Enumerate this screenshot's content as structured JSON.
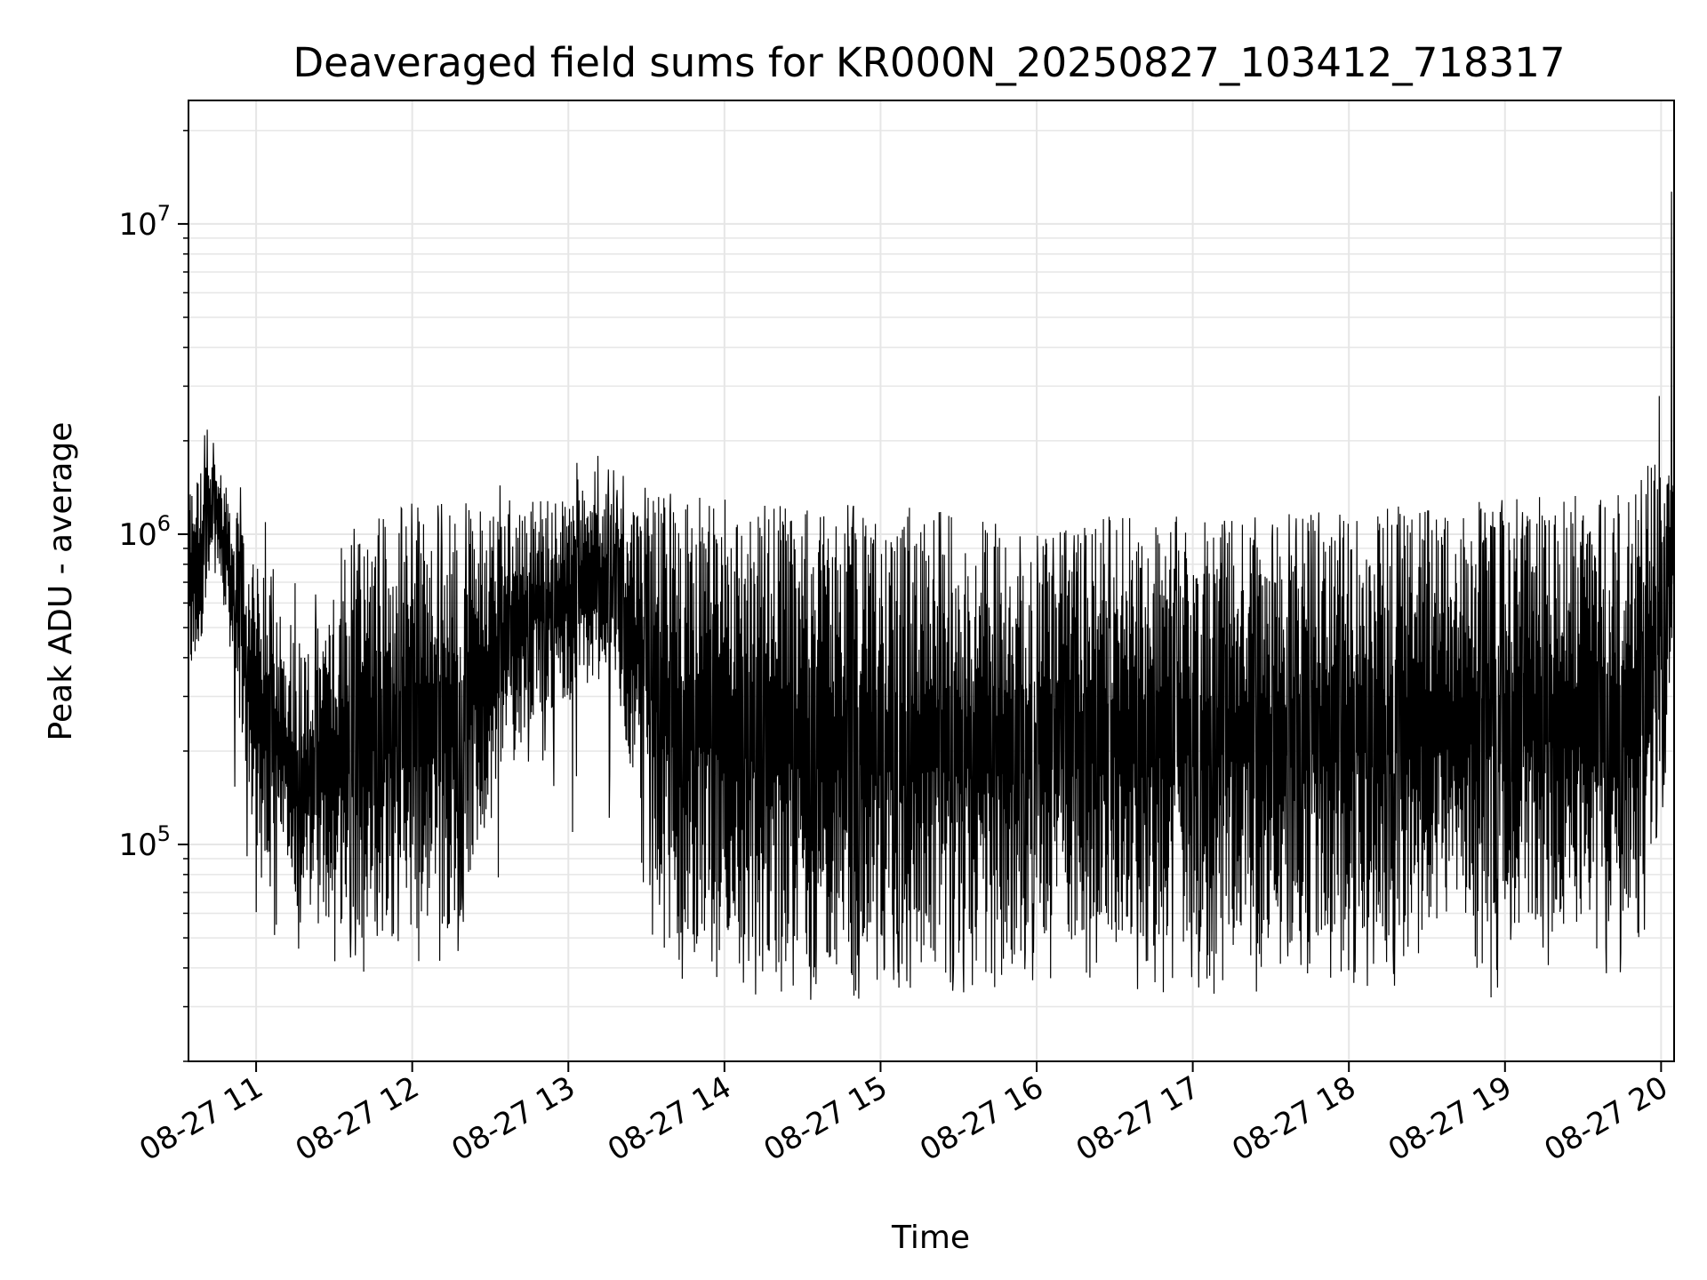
{
  "chart_data": {
    "type": "line",
    "title": "Deaveraged field sums for KR000N_20250827_103412_718317",
    "xlabel": "Time",
    "ylabel": "Peak ADU - average",
    "y_scale": "log",
    "ylim": [
      20000,
      25000000
    ],
    "xlim": [
      "2025-08-27 10:34",
      "2025-08-27 20:05"
    ],
    "grid": true,
    "line_color": "#000000",
    "x_ticks": [
      {
        "value": "2025-08-27 11:00",
        "label": "08-27 11"
      },
      {
        "value": "2025-08-27 12:00",
        "label": "08-27 12"
      },
      {
        "value": "2025-08-27 13:00",
        "label": "08-27 13"
      },
      {
        "value": "2025-08-27 14:00",
        "label": "08-27 14"
      },
      {
        "value": "2025-08-27 15:00",
        "label": "08-27 15"
      },
      {
        "value": "2025-08-27 16:00",
        "label": "08-27 16"
      },
      {
        "value": "2025-08-27 17:00",
        "label": "08-27 17"
      },
      {
        "value": "2025-08-27 18:00",
        "label": "08-27 18"
      },
      {
        "value": "2025-08-27 19:00",
        "label": "08-27 19"
      },
      {
        "value": "2025-08-27 20:00",
        "label": "08-27 20"
      }
    ],
    "y_ticks": [
      {
        "value": 100000,
        "base": "10",
        "exp": "5"
      },
      {
        "value": 1000000,
        "base": "10",
        "exp": "6"
      },
      {
        "value": 10000000,
        "base": "10",
        "exp": "7"
      }
    ],
    "envelope": {
      "x": [
        "2025-08-27 10:34",
        "2025-08-27 10:45",
        "2025-08-27 11:00",
        "2025-08-27 11:20",
        "2025-08-27 11:45",
        "2025-08-27 12:15",
        "2025-08-27 12:45",
        "2025-08-27 13:15",
        "2025-08-27 13:40",
        "2025-08-27 14:00",
        "2025-08-27 14:30",
        "2025-08-27 15:00",
        "2025-08-27 15:30",
        "2025-08-27 16:00",
        "2025-08-27 16:30",
        "2025-08-27 17:00",
        "2025-08-27 17:30",
        "2025-08-27 18:00",
        "2025-08-27 18:30",
        "2025-08-27 19:00",
        "2025-08-27 19:30",
        "2025-08-27 19:50",
        "2025-08-27 20:00",
        "2025-08-27 20:05"
      ],
      "high": [
        1500000,
        1800000,
        800000,
        450000,
        1100000,
        1200000,
        1300000,
        1350000,
        1300000,
        1250000,
        1150000,
        1150000,
        1150000,
        900000,
        1050000,
        1100000,
        1050000,
        1100000,
        1150000,
        1150000,
        1200000,
        1300000,
        2000000,
        2500000
      ],
      "low": [
        300000,
        800000,
        100000,
        55000,
        55000,
        55000,
        250000,
        350000,
        50000,
        45000,
        40000,
        40000,
        38000,
        50000,
        50000,
        48000,
        48000,
        50000,
        52000,
        55000,
        55000,
        60000,
        150000,
        500000
      ],
      "spike_max": [
        2500000,
        2500000,
        1200000,
        1100000,
        1250000,
        1300000,
        2400000,
        1800000,
        1350000,
        1300000,
        1250000,
        1250000,
        1250000,
        1000000,
        1200000,
        1200000,
        1150000,
        1200000,
        1250000,
        1300000,
        1350000,
        1400000,
        3200000,
        18000000
      ],
      "spike_min": [
        300000,
        150000,
        55000,
        42000,
        38000,
        42000,
        80000,
        100000,
        38000,
        32000,
        31000,
        32000,
        33000,
        35000,
        36000,
        30000,
        34000,
        36000,
        32000,
        28000,
        35000,
        38000,
        80000,
        480000
      ]
    }
  }
}
